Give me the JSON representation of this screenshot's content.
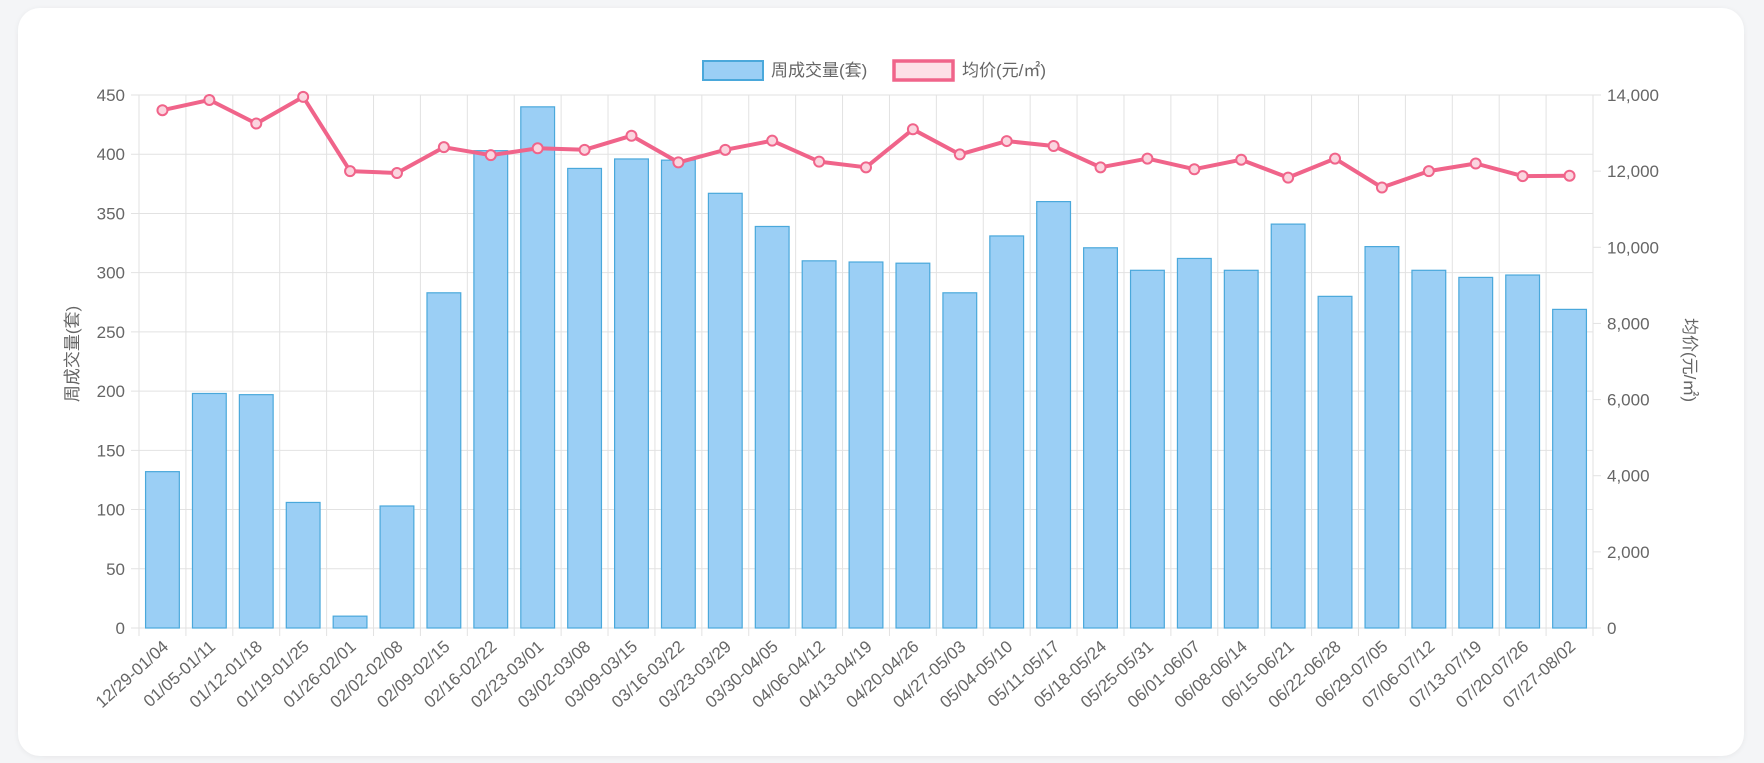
{
  "chart_data": {
    "type": "bar",
    "categories": [
      "12/29-01/04",
      "01/05-01/11",
      "01/12-01/18",
      "01/19-01/25",
      "01/26-02/01",
      "02/02-02/08",
      "02/09-02/15",
      "02/16-02/22",
      "02/23-03/01",
      "03/02-03/08",
      "03/09-03/15",
      "03/16-03/22",
      "03/23-03/29",
      "03/30-04/05",
      "04/06-04/12",
      "04/13-04/19",
      "04/20-04/26",
      "04/27-05/03",
      "05/04-05/10",
      "05/11-05/17",
      "05/18-05/24",
      "05/25-05/31",
      "06/01-06/07",
      "06/08-06/14",
      "06/15-06/21",
      "06/22-06/28",
      "06/29-07/05",
      "07/06-07/12",
      "07/13-07/19",
      "07/20-07/26",
      "07/27-08/02"
    ],
    "series": [
      {
        "name": "周成交量(套)",
        "type": "bar",
        "axis": "left",
        "color": "#9bcff5",
        "border_color": "#4aa8db",
        "values": [
          132,
          198,
          197,
          106,
          10,
          103,
          283,
          403,
          440,
          388,
          396,
          395,
          367,
          339,
          310,
          309,
          308,
          283,
          331,
          360,
          321,
          302,
          312,
          302,
          341,
          280,
          322,
          302,
          296,
          298,
          269
        ]
      },
      {
        "name": "均价(元/㎡)",
        "type": "line",
        "axis": "right",
        "color": "#f0648a",
        "values": [
          13600,
          13870,
          13250,
          13950,
          12000,
          11950,
          12630,
          12420,
          12600,
          12560,
          12930,
          12230,
          12560,
          12800,
          12250,
          12100,
          13100,
          12440,
          12790,
          12660,
          12100,
          12330,
          12050,
          12300,
          11830,
          12330,
          11570,
          12000,
          12200,
          11870,
          11880
        ]
      }
    ],
    "y_left": {
      "label": "周成交量(套)",
      "range": [
        0,
        450
      ],
      "ticks": [
        "0",
        "50",
        "100",
        "150",
        "200",
        "250",
        "300",
        "350",
        "400",
        "450"
      ]
    },
    "y_right": {
      "label": "均价(元/㎡)",
      "range": [
        0,
        14000
      ],
      "ticks": [
        "0",
        "2,000",
        "4,000",
        "6,000",
        "8,000",
        "10,000",
        "12,000",
        "14,000"
      ]
    },
    "grid": true,
    "legend": "top-center"
  }
}
